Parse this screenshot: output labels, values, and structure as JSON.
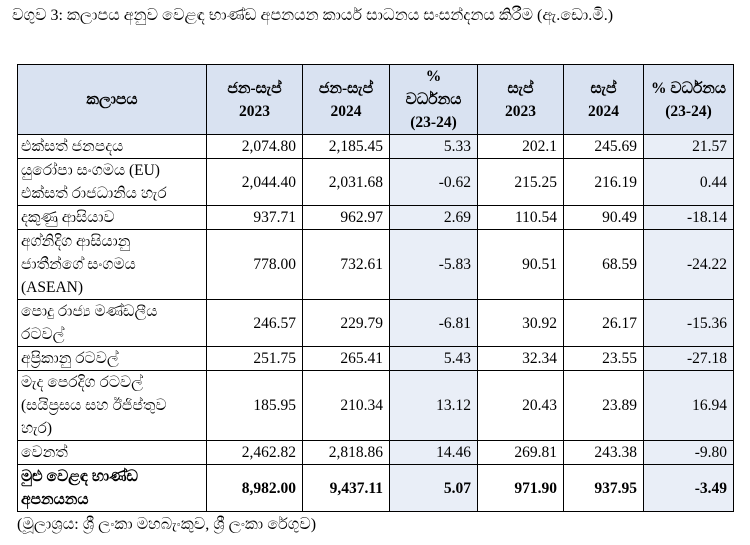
{
  "title": "වගුව 3: කලාපය අනුව වෙළඳ භාණ්ඩ අපනයන කාර්ය සාධනය සංසන්දනය කිරීම (ඇ.ඩො.මි.)",
  "table": {
    "headers": [
      {
        "line1": "කලාපය",
        "line2": ""
      },
      {
        "line1": "ජන-සැප්",
        "line2": "2023"
      },
      {
        "line1": "ජන-සැප්",
        "line2": "2024"
      },
      {
        "line1": "% වර්ධනය",
        "line2": "(23-24)"
      },
      {
        "line1": "සැප්",
        "line2": "2023"
      },
      {
        "line1": "සැප්",
        "line2": "2024"
      },
      {
        "line1": "% වර්ධනය",
        "line2": "(23-24)"
      }
    ],
    "rows": [
      {
        "region": "එක්සත් ජනපදය",
        "values": [
          "2,074.80",
          "2,185.45",
          "5.33",
          "202.1",
          "245.69",
          "21.57"
        ]
      },
      {
        "region": "යුරෝපා සංගමය (EU)\nඑක්සත් රාජධානිය හැර",
        "values": [
          "2,044.40",
          "2,031.68",
          "-0.62",
          "215.25",
          "216.19",
          "0.44"
        ]
      },
      {
        "region": "දකුණු ආසියාව",
        "values": [
          "937.71",
          "962.97",
          "2.69",
          "110.54",
          "90.49",
          "-18.14"
        ]
      },
      {
        "region": "අග්නිදිග ආසියානු\nජාතීන්ගේ සංගමය\n(ASEAN)",
        "values": [
          "778.00",
          "732.61",
          "-5.83",
          "90.51",
          "68.59",
          "-24.22"
        ]
      },
      {
        "region": "පොදු රාජ්‍ය මණ්ඩලීය\nරටවල්",
        "values": [
          "246.57",
          "229.79",
          "-6.81",
          "30.92",
          "26.17",
          "-15.36"
        ]
      },
      {
        "region": "අප්‍රිකානු රටවල්",
        "values": [
          "251.75",
          "265.41",
          "5.43",
          "32.34",
          "23.55",
          "-27.18"
        ]
      },
      {
        "region": "මැද පෙරදිග රටවල්\n(සයිප්‍රසය සහ ඊජිප්තුව\nහැර)",
        "values": [
          "185.95",
          "210.34",
          "13.12",
          "20.43",
          "23.89",
          "16.94"
        ]
      },
      {
        "region": "වෙනත්",
        "values": [
          "2,462.82",
          "2,818.86",
          "14.46",
          "269.81",
          "243.38",
          "-9.80"
        ]
      }
    ],
    "total": {
      "region": "මුළු වෙළඳ භාණ්ඩ\nඅපනයනය",
      "values": [
        "8,982.00",
        "9,437.11",
        "5.07",
        "971.90",
        "937.95",
        "-3.49"
      ]
    }
  },
  "source": "(මූලාශ්‍රය: ශ්‍රී ලංකා මහබැංකුව, ශ්‍රී ලංකා රේගුව)"
}
